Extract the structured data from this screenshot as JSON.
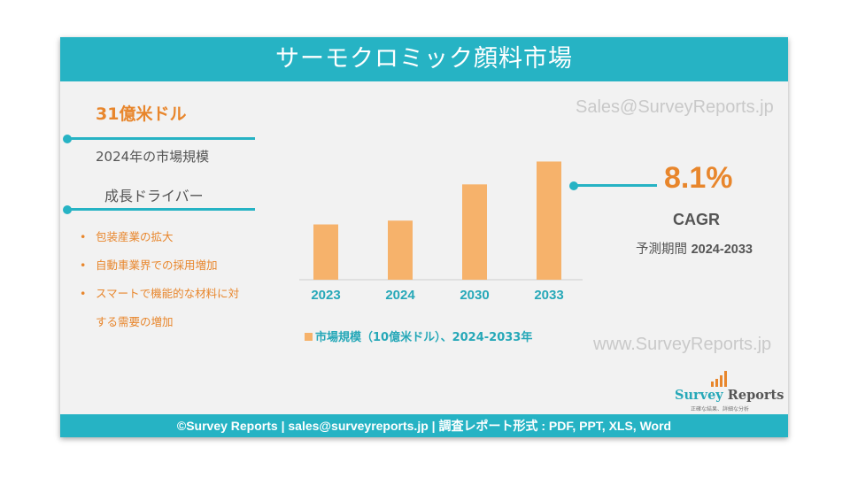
{
  "header": {
    "title": "サーモクロミック顔料市場"
  },
  "watermarks": {
    "email": "Sales@SurveyReports.jp",
    "site": "www.SurveyReports.jp"
  },
  "market": {
    "size": "31億米ドル",
    "caption": "2024年の市場規模"
  },
  "drivers": {
    "title": "成長ドライバー",
    "items": [
      {
        "bullet": "•",
        "text": "包装産業の拡大"
      },
      {
        "bullet": "•",
        "text": "自動車業界での採用増加"
      },
      {
        "bullet": "•",
        "text": "スマートで機能的な材料に対",
        "cont": "する需要の増加"
      }
    ]
  },
  "chart_data": {
    "type": "bar",
    "categories": [
      "2023",
      "2024",
      "2030",
      "2033"
    ],
    "values": [
      2.9,
      3.1,
      5.0,
      6.2
    ],
    "ylim": [
      0,
      6.5
    ],
    "legend": "市場規模（10億米ドル）、2024-2033年",
    "bar_color": "#f6b26b",
    "label_color": "#26a8b8"
  },
  "cagr": {
    "value": "8.1%",
    "label": "CAGR",
    "period_prefix": "予測期間",
    "period_years": "2024-2033"
  },
  "logo": {
    "part1": "Survey",
    "part2": "Reports",
    "tagline": "正確な結果、詳細な分析"
  },
  "footer": {
    "text": "©Survey Reports | sales@surveyreports.jp |  調査レポート形式 : PDF, PPT, XLS, Word"
  },
  "colors": {
    "accent": "#26b3c4",
    "orange": "#e8862c",
    "gray_text": "#555555"
  }
}
